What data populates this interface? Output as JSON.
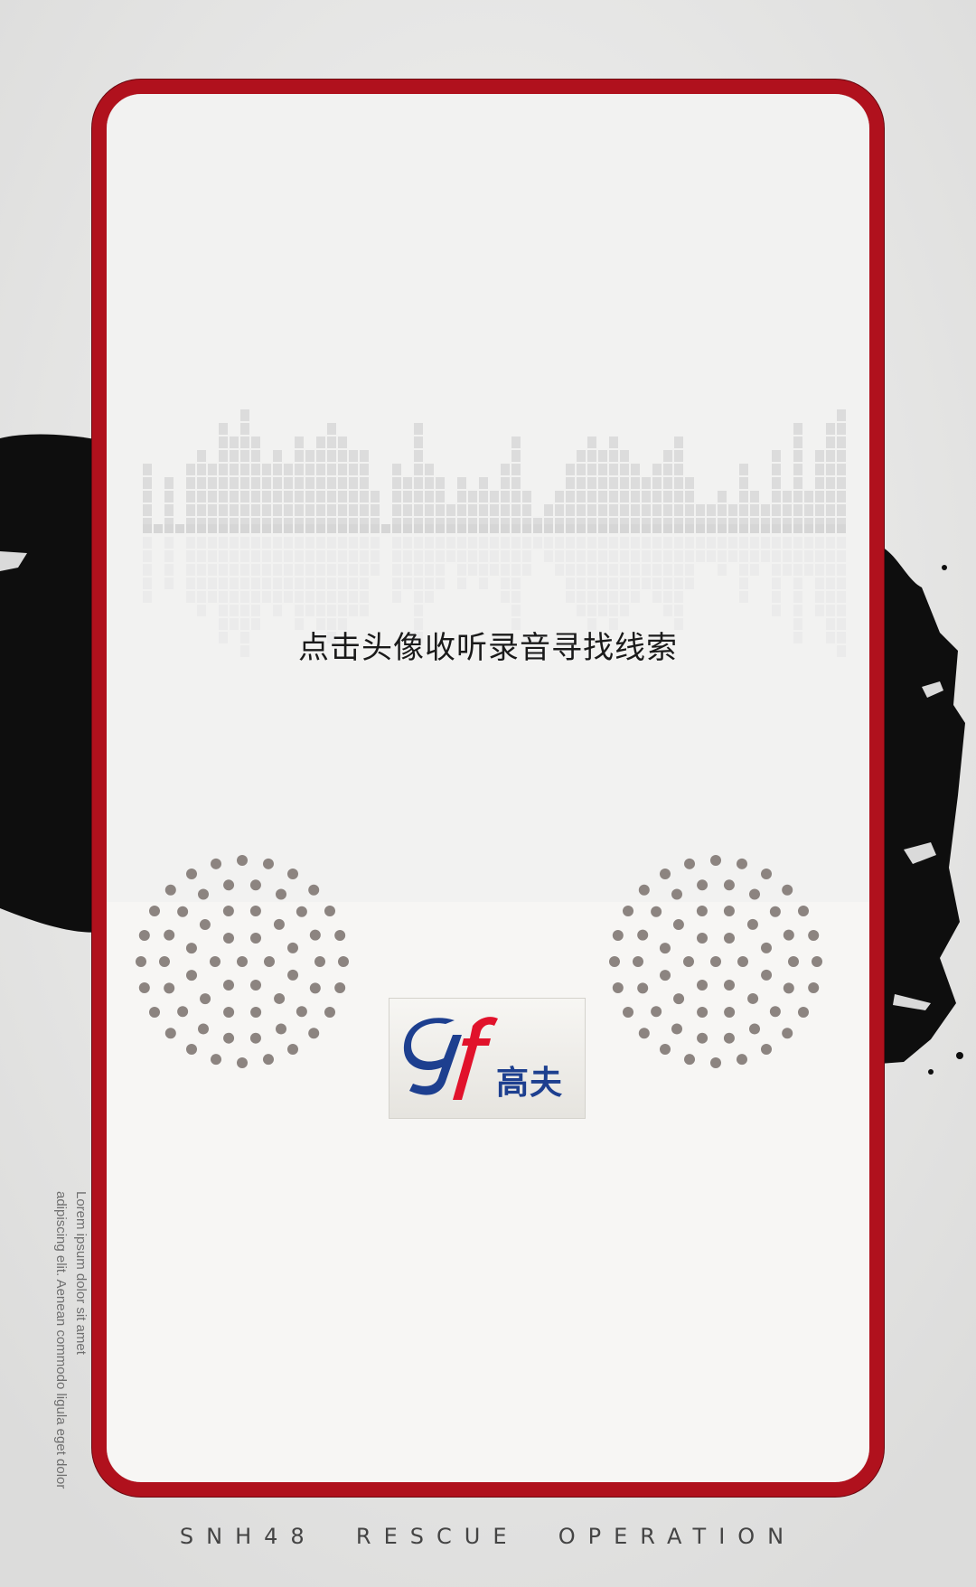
{
  "hint": {
    "text": "点击头像收听录音寻找线索"
  },
  "logo": {
    "mark": "gf",
    "brand": "高夫"
  },
  "side_caption": {
    "line1": "Lorem ipsum dolor sit amet",
    "line2": "adipiscing elit. Aenean commodo ligula eget dolor"
  },
  "footer": {
    "text": "SNH48  RESCUE  OPERATION"
  },
  "colors": {
    "frame": "#b0111d",
    "screen_top": "#f2f2f1",
    "screen_bottom": "#f7f6f4",
    "speaker_hole": "#8c8480",
    "logo_blue": "#1d3f8f",
    "logo_red": "#e1122b",
    "ink": "#0e0e0e"
  },
  "icons": {
    "equalizer": "equalizer-graphic",
    "speakers": "speaker-grille-icon",
    "logo": "gf-brand-logo"
  }
}
